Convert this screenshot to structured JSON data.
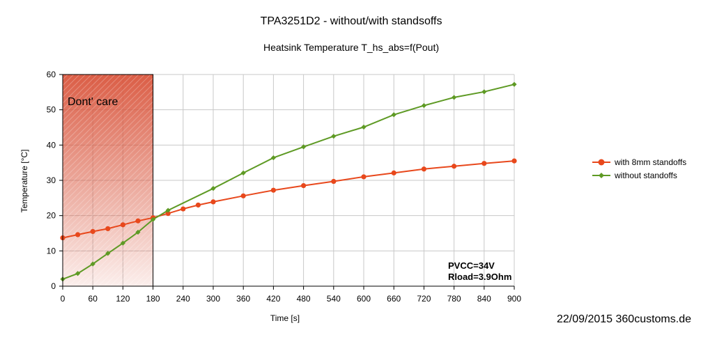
{
  "chart_data": {
    "type": "line",
    "title": "TPA3251D2 - without/with standsoffs",
    "subtitle": "Heatsink Temperature T_hs_abs=f(Pout)",
    "xlabel": "Time [s]",
    "ylabel": "Temperature [°C]",
    "xlim": [
      0,
      900
    ],
    "ylim": [
      0,
      60
    ],
    "xticks": [
      0,
      60,
      120,
      180,
      240,
      300,
      360,
      420,
      480,
      540,
      600,
      660,
      720,
      780,
      840,
      900
    ],
    "yticks": [
      0,
      10,
      20,
      30,
      40,
      50,
      60
    ],
    "grid": true,
    "legend_position": "right",
    "series": [
      {
        "name": "with 8mm standoffs",
        "color": "#e8481c",
        "marker": "circle",
        "x": [
          0,
          30,
          60,
          90,
          120,
          150,
          180,
          210,
          240,
          270,
          300,
          360,
          420,
          480,
          540,
          600,
          660,
          720,
          780,
          840,
          900
        ],
        "y": [
          13.7,
          14.6,
          15.5,
          16.3,
          17.4,
          18.5,
          19.4,
          20.6,
          21.9,
          23.0,
          23.9,
          25.6,
          27.2,
          28.5,
          29.7,
          31.0,
          32.1,
          33.2,
          34.0,
          34.8,
          35.5
        ]
      },
      {
        "name": "without standoffs",
        "color": "#5e9a24",
        "marker": "diamond",
        "x": [
          0,
          30,
          60,
          90,
          120,
          150,
          180,
          210,
          300,
          360,
          420,
          480,
          540,
          600,
          660,
          720,
          780,
          840,
          900
        ],
        "y": [
          2.0,
          3.6,
          6.3,
          9.3,
          12.2,
          15.3,
          18.9,
          21.5,
          27.7,
          32.1,
          36.4,
          39.5,
          42.5,
          45.1,
          48.6,
          51.2,
          53.5,
          55.1,
          57.2
        ]
      }
    ],
    "annotations": {
      "region": {
        "label": "Dont' care",
        "x_range": [
          0,
          180
        ],
        "color": "#d9553c"
      },
      "conditions": [
        "PVCC=34V",
        "Rload=3.9Ohm"
      ]
    }
  },
  "footer": {
    "credit": "22/09/2015 360customs.de"
  }
}
